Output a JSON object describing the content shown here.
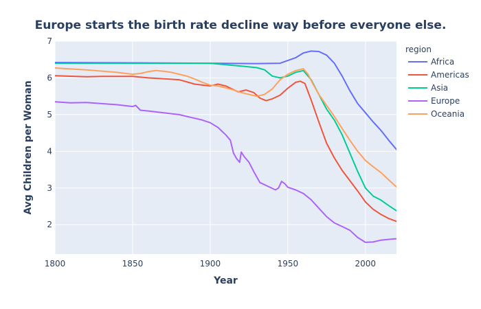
{
  "chart_data": {
    "type": "line",
    "title": "Europe starts the birth rate decline way before everyone else.",
    "xlabel": "Year",
    "ylabel": "Avg Children per Woman",
    "xlim": [
      1800,
      2020
    ],
    "ylim": [
      1.2,
      7
    ],
    "xticks": [
      1800,
      1850,
      1900,
      1950,
      2000
    ],
    "yticks": [
      2,
      3,
      4,
      5,
      6,
      7
    ],
    "grid": true,
    "legend": {
      "title": "region",
      "position": "right"
    },
    "series": [
      {
        "name": "Africa",
        "color": "#636efa",
        "x": [
          1800,
          1850,
          1900,
          1930,
          1945,
          1955,
          1960,
          1965,
          1970,
          1975,
          1980,
          1985,
          1990,
          1995,
          2000,
          2005,
          2010,
          2015,
          2020
        ],
        "values": [
          6.42,
          6.41,
          6.4,
          6.39,
          6.4,
          6.55,
          6.68,
          6.73,
          6.72,
          6.62,
          6.4,
          6.05,
          5.65,
          5.3,
          5.05,
          4.8,
          4.57,
          4.3,
          4.05
        ]
      },
      {
        "name": "Americas",
        "color": "#ef553b",
        "x": [
          1800,
          1820,
          1830,
          1850,
          1860,
          1880,
          1890,
          1900,
          1905,
          1910,
          1918,
          1923,
          1928,
          1932,
          1936,
          1940,
          1945,
          1950,
          1955,
          1958,
          1961,
          1965,
          1970,
          1975,
          1980,
          1985,
          1990,
          1995,
          2000,
          2005,
          2010,
          2015,
          2020
        ],
        "values": [
          6.06,
          6.03,
          6.04,
          6.04,
          6.0,
          5.95,
          5.83,
          5.78,
          5.83,
          5.78,
          5.62,
          5.67,
          5.6,
          5.45,
          5.38,
          5.43,
          5.53,
          5.72,
          5.88,
          5.91,
          5.85,
          5.4,
          4.8,
          4.22,
          3.82,
          3.48,
          3.2,
          2.92,
          2.62,
          2.42,
          2.28,
          2.17,
          2.09
        ]
      },
      {
        "name": "Asia",
        "color": "#00cc96",
        "x": [
          1800,
          1850,
          1880,
          1900,
          1910,
          1920,
          1930,
          1935,
          1940,
          1945,
          1950,
          1955,
          1960,
          1965,
          1970,
          1975,
          1980,
          1985,
          1990,
          1995,
          2000,
          2005,
          2010,
          2015,
          2020
        ],
        "values": [
          6.4,
          6.4,
          6.4,
          6.4,
          6.36,
          6.32,
          6.28,
          6.22,
          6.05,
          6.0,
          6.05,
          6.15,
          6.2,
          5.95,
          5.55,
          5.15,
          4.85,
          4.45,
          3.95,
          3.45,
          3.0,
          2.78,
          2.67,
          2.52,
          2.38
        ]
      },
      {
        "name": "Europe",
        "color": "#ab63fa",
        "x": [
          1800,
          1810,
          1820,
          1830,
          1840,
          1850,
          1852,
          1855,
          1860,
          1870,
          1880,
          1885,
          1890,
          1895,
          1900,
          1905,
          1910,
          1913,
          1915,
          1917,
          1919,
          1920,
          1922,
          1925,
          1928,
          1932,
          1937,
          1942,
          1944,
          1946,
          1948,
          1950,
          1955,
          1960,
          1965,
          1970,
          1975,
          1980,
          1985,
          1990,
          1995,
          2000,
          2005,
          2010,
          2015,
          2020
        ],
        "values": [
          5.35,
          5.32,
          5.33,
          5.3,
          5.27,
          5.22,
          5.25,
          5.12,
          5.1,
          5.05,
          5.0,
          4.95,
          4.9,
          4.85,
          4.78,
          4.65,
          4.45,
          4.3,
          3.95,
          3.8,
          3.7,
          3.98,
          3.85,
          3.7,
          3.45,
          3.15,
          3.05,
          2.95,
          3.0,
          3.18,
          3.12,
          3.02,
          2.95,
          2.85,
          2.68,
          2.45,
          2.22,
          2.05,
          1.95,
          1.85,
          1.65,
          1.52,
          1.53,
          1.58,
          1.6,
          1.62
        ]
      },
      {
        "name": "Oceania",
        "color": "#ffa15a",
        "x": [
          1800,
          1820,
          1840,
          1850,
          1855,
          1860,
          1865,
          1870,
          1875,
          1880,
          1885,
          1890,
          1895,
          1900,
          1905,
          1910,
          1915,
          1920,
          1925,
          1930,
          1935,
          1940,
          1945,
          1950,
          1955,
          1960,
          1963,
          1966,
          1970,
          1975,
          1980,
          1985,
          1990,
          1995,
          2000,
          2005,
          2010,
          2015,
          2020
        ],
        "values": [
          6.27,
          6.22,
          6.15,
          6.1,
          6.12,
          6.17,
          6.2,
          6.18,
          6.15,
          6.1,
          6.05,
          5.97,
          5.88,
          5.8,
          5.78,
          5.73,
          5.67,
          5.6,
          5.55,
          5.5,
          5.55,
          5.7,
          5.95,
          6.1,
          6.2,
          6.25,
          6.1,
          5.85,
          5.55,
          5.25,
          4.95,
          4.62,
          4.3,
          4.0,
          3.75,
          3.58,
          3.42,
          3.22,
          3.03
        ]
      }
    ]
  }
}
